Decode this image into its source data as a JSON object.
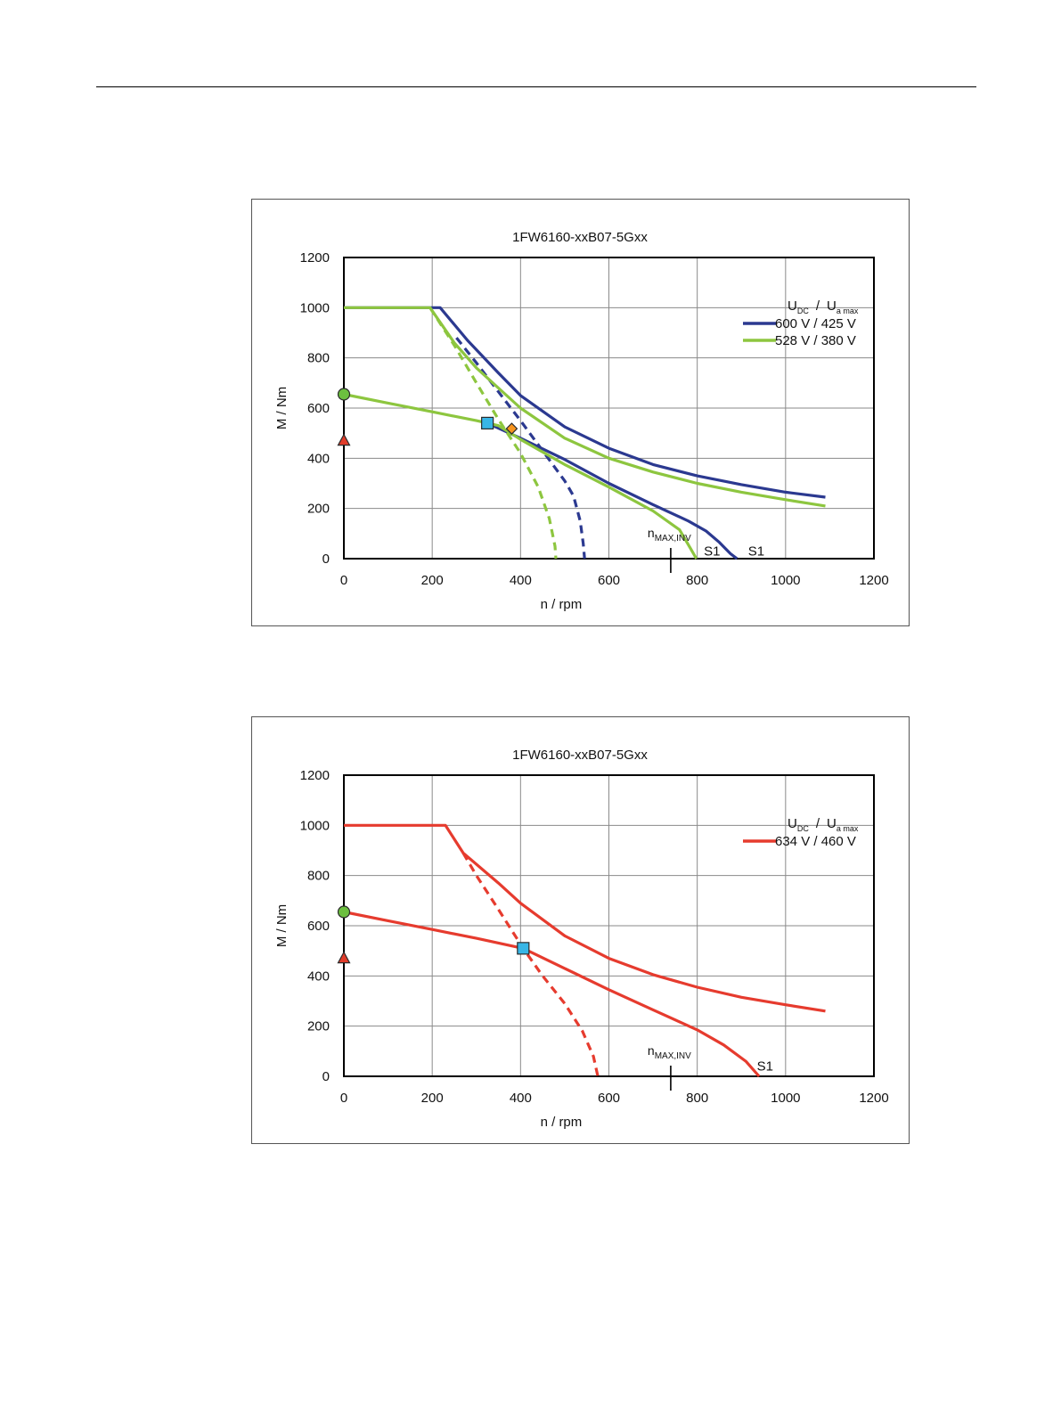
{
  "chart_data": [
    {
      "type": "line",
      "title": "1FW6160-xxB07-5Gxx",
      "xlabel": "n / rpm",
      "ylabel": "M / Nm",
      "xlim": [
        0,
        1200
      ],
      "ylim": [
        0,
        1200
      ],
      "xticks": [
        "0",
        "200",
        "400",
        "600",
        "800",
        "1000",
        "1200"
      ],
      "yticks": [
        "0",
        "200",
        "400",
        "600",
        "800",
        "1000",
        "1200"
      ],
      "grid": true,
      "legend": {
        "position": "top-right",
        "header_main": "U",
        "header_sub1": "DC",
        "header_sep": "/",
        "header_main2": "U",
        "header_sub2": "a max",
        "entries": [
          {
            "label": "600 V / 425 V",
            "color": "#2b3990"
          },
          {
            "label": "528 V / 380 V",
            "color": "#8dc63f"
          }
        ]
      },
      "annotation": {
        "main": "n",
        "sub": "MAX,INV",
        "x": 740
      },
      "curve_labels": [
        {
          "text": "S1",
          "x": 815,
          "y": 30
        },
        {
          "text": "S1",
          "x": 915,
          "y": 30
        }
      ],
      "series": [
        {
          "name": "600 V / 425 V",
          "style": "solid",
          "color": "#2b3990",
          "points": [
            [
              0,
              1000
            ],
            [
              218,
              1000
            ],
            [
              280,
              870
            ],
            [
              350,
              740
            ],
            [
              400,
              650
            ],
            [
              500,
              525
            ],
            [
              600,
              440
            ],
            [
              700,
              375
            ],
            [
              800,
              330
            ],
            [
              900,
              295
            ],
            [
              1000,
              265
            ],
            [
              1090,
              245
            ]
          ]
        },
        {
          "name": "600 V / 425 V",
          "style": "solid",
          "color": "#2b3990",
          "points": [
            [
              325,
              540
            ],
            [
              400,
              480
            ],
            [
              500,
              395
            ],
            [
              600,
              300
            ],
            [
              700,
              215
            ],
            [
              780,
              150
            ],
            [
              820,
              110
            ],
            [
              850,
              65
            ],
            [
              875,
              20
            ],
            [
              890,
              0
            ]
          ]
        },
        {
          "name": "600 V / 425 V",
          "style": "dashed",
          "color": "#2b3990",
          "points": [
            [
              255,
              880
            ],
            [
              300,
              780
            ],
            [
              350,
              665
            ],
            [
              400,
              550
            ],
            [
              450,
              430
            ],
            [
              500,
              310
            ],
            [
              520,
              250
            ],
            [
              535,
              150
            ],
            [
              542,
              60
            ],
            [
              545,
              0
            ]
          ]
        },
        {
          "name": "528 V / 380 V",
          "style": "solid",
          "color": "#8dc63f",
          "points": [
            [
              0,
              1000
            ],
            [
              195,
              1000
            ],
            [
              250,
              860
            ],
            [
              300,
              760
            ],
            [
              350,
              680
            ],
            [
              400,
              600
            ],
            [
              500,
              480
            ],
            [
              600,
              400
            ],
            [
              700,
              345
            ],
            [
              800,
              300
            ],
            [
              900,
              265
            ],
            [
              1000,
              235
            ],
            [
              1090,
              210
            ]
          ]
        },
        {
          "name": "528 V / 380 V",
          "style": "solid",
          "color": "#8dc63f",
          "points": [
            [
              0,
              655
            ],
            [
              100,
              620
            ],
            [
              200,
              585
            ],
            [
              300,
              550
            ],
            [
              350,
              530
            ],
            [
              400,
              475
            ],
            [
              500,
              375
            ],
            [
              600,
              285
            ],
            [
              700,
              190
            ],
            [
              760,
              115
            ],
            [
              785,
              40
            ],
            [
              798,
              0
            ]
          ]
        },
        {
          "name": "528 V / 380 V",
          "style": "dashed",
          "color": "#8dc63f",
          "points": [
            [
              195,
              1000
            ],
            [
              250,
              850
            ],
            [
              300,
              700
            ],
            [
              350,
              555
            ],
            [
              400,
              420
            ],
            [
              440,
              285
            ],
            [
              465,
              160
            ],
            [
              478,
              50
            ],
            [
              480,
              0
            ]
          ]
        }
      ],
      "markers": [
        {
          "shape": "circle",
          "x": 0,
          "y": 655,
          "color": "#6cbf3f"
        },
        {
          "shape": "triangle",
          "x": 0,
          "y": 470,
          "color": "#e03c2a"
        },
        {
          "shape": "square",
          "x": 325,
          "y": 540,
          "color": "#38b6e6"
        },
        {
          "shape": "diamond",
          "x": 380,
          "y": 518,
          "color": "#f7941d"
        }
      ]
    },
    {
      "type": "line",
      "title": "1FW6160-xxB07-5Gxx",
      "xlabel": "n / rpm",
      "ylabel": "M / Nm",
      "xlim": [
        0,
        1200
      ],
      "ylim": [
        0,
        1200
      ],
      "xticks": [
        "0",
        "200",
        "400",
        "600",
        "800",
        "1000",
        "1200"
      ],
      "yticks": [
        "0",
        "200",
        "400",
        "600",
        "800",
        "1000",
        "1200"
      ],
      "grid": true,
      "legend": {
        "position": "top-right",
        "header_main": "U",
        "header_sub1": "DC",
        "header_sep": "/",
        "header_main2": "U",
        "header_sub2": "a max",
        "entries": [
          {
            "label": "634 V / 460 V",
            "color": "#e63b2e"
          }
        ]
      },
      "annotation": {
        "main": "n",
        "sub": "MAX,INV",
        "x": 740
      },
      "curve_labels": [
        {
          "text": "S1",
          "x": 935,
          "y": 40
        }
      ],
      "series": [
        {
          "name": "634 V / 460 V",
          "style": "solid",
          "color": "#e63b2e",
          "points": [
            [
              0,
              1000
            ],
            [
              230,
              1000
            ],
            [
              270,
              890
            ],
            [
              350,
              770
            ],
            [
              400,
              690
            ],
            [
              500,
              560
            ],
            [
              600,
              470
            ],
            [
              700,
              405
            ],
            [
              800,
              355
            ],
            [
              900,
              315
            ],
            [
              1000,
              285
            ],
            [
              1090,
              260
            ]
          ]
        },
        {
          "name": "634 V / 460 V",
          "style": "solid",
          "color": "#e63b2e",
          "points": [
            [
              0,
              655
            ],
            [
              100,
              620
            ],
            [
              200,
              585
            ],
            [
              300,
              550
            ],
            [
              406,
              510
            ],
            [
              500,
              430
            ],
            [
              600,
              345
            ],
            [
              700,
              265
            ],
            [
              800,
              185
            ],
            [
              860,
              125
            ],
            [
              910,
              60
            ],
            [
              940,
              0
            ]
          ]
        },
        {
          "name": "634 V / 460 V",
          "style": "dashed",
          "color": "#e63b2e",
          "points": [
            [
              270,
              890
            ],
            [
              300,
              800
            ],
            [
              350,
              665
            ],
            [
              406,
              510
            ],
            [
              450,
              400
            ],
            [
              500,
              290
            ],
            [
              540,
              180
            ],
            [
              565,
              80
            ],
            [
              575,
              0
            ]
          ]
        }
      ],
      "markers": [
        {
          "shape": "circle",
          "x": 0,
          "y": 655,
          "color": "#6cbf3f"
        },
        {
          "shape": "triangle",
          "x": 0,
          "y": 470,
          "color": "#e03c2a"
        },
        {
          "shape": "square",
          "x": 406,
          "y": 510,
          "color": "#38b6e6"
        }
      ]
    }
  ]
}
